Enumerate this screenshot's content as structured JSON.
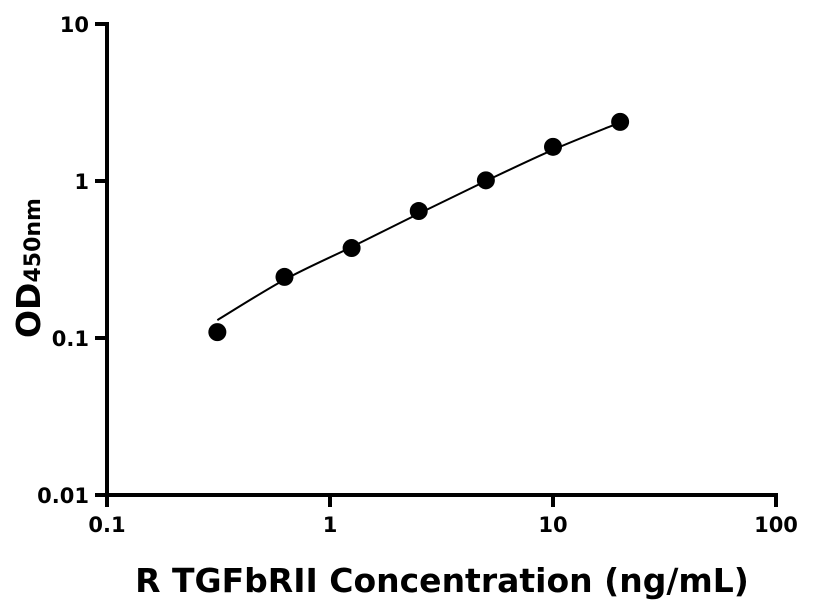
{
  "chart_data": {
    "type": "scatter",
    "title": "",
    "xlabel": "R TGFbRII Concentration (ng/mL)",
    "ylabel_main": "OD",
    "ylabel_sub": "450nm",
    "xscale": "log",
    "yscale": "log",
    "xlim": [
      0.1,
      100
    ],
    "ylim": [
      0.01,
      10
    ],
    "xticks": [
      0.1,
      1,
      10,
      100
    ],
    "xtick_labels": [
      "0.1",
      "1",
      "10",
      "100"
    ],
    "yticks": [
      0.01,
      0.1,
      1,
      10
    ],
    "ytick_labels": [
      "0.01",
      "0.1",
      "1",
      "10"
    ],
    "grid": false,
    "points": {
      "x": [
        0.3125,
        0.625,
        1.25,
        2.5,
        5,
        10,
        20
      ],
      "y": [
        0.109,
        0.245,
        0.374,
        0.644,
        1.01,
        1.65,
        2.38
      ]
    },
    "fit_curve": {
      "x": [
        0.3125,
        0.625,
        1.25,
        2.5,
        5,
        10,
        20
      ],
      "y": [
        0.13,
        0.235,
        0.38,
        0.62,
        1.0,
        1.58,
        2.36
      ]
    },
    "colors": {
      "points": "#000000",
      "line": "#000000",
      "axes": "#000000"
    }
  }
}
